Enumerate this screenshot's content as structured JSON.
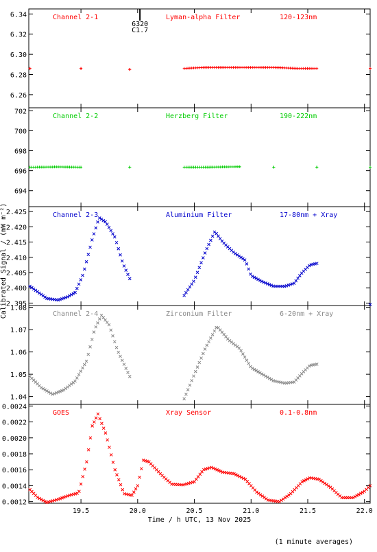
{
  "chart_data": {
    "type": "scatter",
    "x_axis": {
      "label": "Time / h UTC, 13 Nov 2025",
      "range": [
        19.04,
        22.05
      ],
      "ticks": [
        19.5,
        20.0,
        20.5,
        21.0,
        21.5,
        22.0
      ],
      "tick_labels": [
        "19.5",
        "20.0",
        "20.5",
        "21.0",
        "21.5",
        "22.0"
      ]
    },
    "y_axis_label": "Calibrated Signal / (mW m⁻²)",
    "footnote": "(1 minute averages)",
    "event_marker": {
      "x": 20.02,
      "labels": [
        "6320",
        "C1.7"
      ]
    },
    "panels": [
      {
        "channel": "Channel 2-1",
        "filter": "Lyman-alpha Filter",
        "band": "120-123nm",
        "color": "#ff0000",
        "marker": "plus",
        "ylim": [
          6.247,
          6.345
        ],
        "yticks": [
          6.26,
          6.28,
          6.3,
          6.32,
          6.34
        ],
        "ytick_labels": [
          "6.26",
          "6.28",
          "6.30",
          "6.32",
          "6.34"
        ],
        "x": [
          19.05,
          19.5,
          19.93,
          20.41,
          20.6,
          20.8,
          21.0,
          21.2,
          21.4,
          21.58,
          22.05
        ],
        "y": [
          6.286,
          6.286,
          6.285,
          6.286,
          6.287,
          6.287,
          6.287,
          6.287,
          6.286,
          6.286,
          6.286
        ]
      },
      {
        "channel": "Channel 2-2",
        "filter": "Herzberg Filter",
        "band": "190-222nm",
        "color": "#00cc00",
        "marker": "plus",
        "ylim": [
          692.4,
          702.3
        ],
        "yticks": [
          694,
          696,
          698,
          700,
          702
        ],
        "ytick_labels": [
          "694",
          "696",
          "698",
          "700",
          "702"
        ],
        "x": [
          19.05,
          19.3,
          19.5,
          19.93,
          20.41,
          20.6,
          20.9,
          21.2,
          21.58,
          22.05
        ],
        "y": [
          696.35,
          696.38,
          696.35,
          696.35,
          696.35,
          696.35,
          696.4,
          696.35,
          696.35,
          696.35
        ]
      },
      {
        "channel": "Channel 2-3",
        "filter": "Aluminium Filter",
        "band": "17-80nm + Xray",
        "color": "#0000cc",
        "marker": "cross",
        "ylim": [
          2.3942,
          2.4266
        ],
        "yticks": [
          2.395,
          2.4,
          2.405,
          2.41,
          2.415,
          2.42,
          2.425
        ],
        "ytick_labels": [
          "2.395",
          "2.400",
          "2.405",
          "2.410",
          "2.415",
          "2.420",
          "2.425"
        ],
        "x": [
          19.05,
          19.2,
          19.3,
          19.38,
          19.45,
          19.52,
          19.6,
          19.66,
          19.72,
          19.8,
          19.87,
          19.93,
          20.41,
          20.5,
          20.6,
          20.68,
          20.75,
          20.85,
          20.95,
          21.0,
          21.1,
          21.2,
          21.3,
          21.38,
          21.45,
          21.52,
          21.58,
          22.05
        ],
        "y": [
          2.4005,
          2.3965,
          2.396,
          2.397,
          2.3985,
          2.4045,
          2.416,
          2.423,
          2.4215,
          2.4165,
          2.408,
          2.403,
          2.3975,
          2.4025,
          2.412,
          2.4185,
          2.415,
          2.4115,
          2.409,
          2.404,
          2.402,
          2.4005,
          2.4005,
          2.4015,
          2.405,
          2.4075,
          2.408,
          2.3945
        ]
      },
      {
        "channel": "Channel 2-4",
        "filter": "Zirconium Filter",
        "band": "6-20nm + Xray",
        "color": "#888888",
        "marker": "cross",
        "ylim": [
          1.0365,
          1.0808
        ],
        "yticks": [
          1.04,
          1.05,
          1.06,
          1.07,
          1.08
        ],
        "ytick_labels": [
          "1.04",
          "1.05",
          "1.06",
          "1.07",
          "1.08"
        ],
        "x": [
          19.05,
          19.15,
          19.25,
          19.35,
          19.45,
          19.55,
          19.62,
          19.68,
          19.75,
          19.82,
          19.93,
          20.41,
          20.5,
          20.6,
          20.7,
          20.8,
          20.9,
          21.0,
          21.1,
          21.2,
          21.3,
          21.38,
          21.46,
          21.52,
          21.58
        ],
        "y": [
          1.049,
          1.044,
          1.041,
          1.043,
          1.047,
          1.056,
          1.07,
          1.0765,
          1.072,
          1.061,
          1.049,
          1.039,
          1.05,
          1.062,
          1.0715,
          1.0655,
          1.0615,
          1.053,
          1.05,
          1.047,
          1.046,
          1.0465,
          1.051,
          1.054,
          1.0545
        ]
      },
      {
        "channel": "GOES",
        "filter": "Xray Sensor",
        "band": "0.1-0.8nm",
        "color": "#ff0000",
        "marker": "cross",
        "ylim": [
          0.00118,
          0.00242
        ],
        "yticks": [
          0.0012,
          0.0014,
          0.0016,
          0.0018,
          0.002,
          0.0022,
          0.0024
        ],
        "ytick_labels": [
          "0.0012",
          "0.0014",
          "0.0016",
          "0.0018",
          "0.0020",
          "0.0022",
          "0.0024"
        ],
        "x": [
          19.05,
          19.12,
          19.2,
          19.3,
          19.4,
          19.48,
          19.55,
          19.6,
          19.65,
          19.72,
          19.8,
          19.88,
          19.95,
          20.0,
          20.05,
          20.1,
          20.2,
          20.3,
          20.4,
          20.5,
          20.58,
          20.65,
          20.75,
          20.85,
          20.95,
          21.05,
          21.15,
          21.25,
          21.35,
          21.45,
          21.52,
          21.6,
          21.7,
          21.8,
          21.9,
          22.0,
          22.05
        ],
        "y": [
          0.00135,
          0.00125,
          0.00119,
          0.00123,
          0.00128,
          0.00131,
          0.0017,
          0.00215,
          0.0023,
          0.00205,
          0.0016,
          0.0013,
          0.00128,
          0.0014,
          0.00172,
          0.0017,
          0.00155,
          0.00142,
          0.00141,
          0.00145,
          0.0016,
          0.00163,
          0.00157,
          0.00155,
          0.00148,
          0.00132,
          0.00122,
          0.0012,
          0.0013,
          0.00145,
          0.0015,
          0.00148,
          0.00138,
          0.00125,
          0.00125,
          0.00133,
          0.0014
        ]
      }
    ]
  }
}
